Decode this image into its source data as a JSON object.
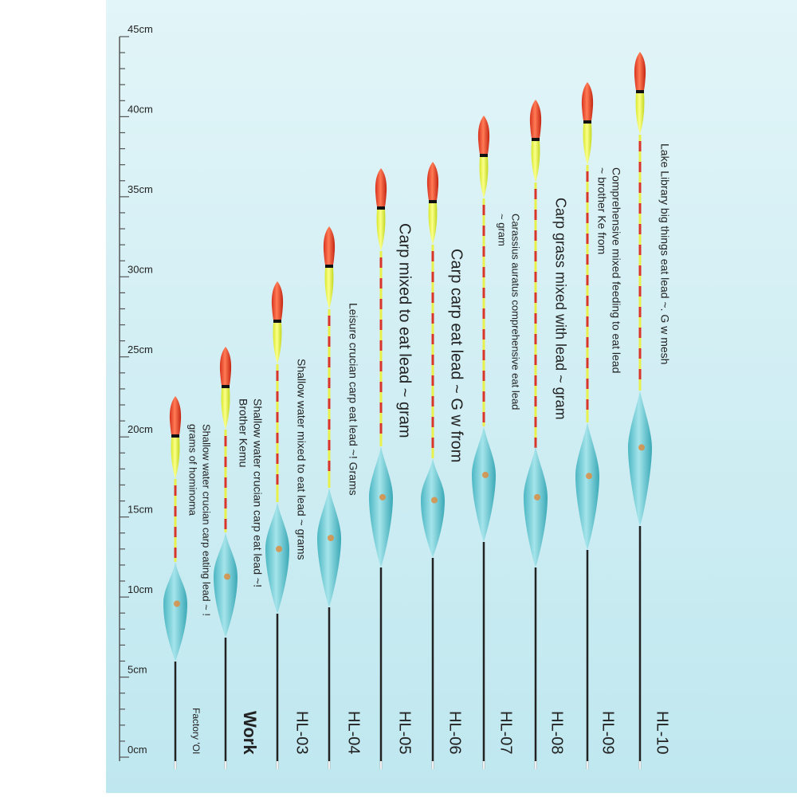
{
  "ruler": {
    "labels": [
      "0cm",
      "5cm",
      "10cm",
      "15cm",
      "20cm",
      "25cm",
      "30cm",
      "35cm",
      "40cm",
      "45cm"
    ]
  },
  "floats": [
    {
      "model": "Factory 'OI",
      "description": [
        "Shallow water crucian carp eating lead ~ !",
        "grams of hominoma"
      ]
    },
    {
      "model": "Work",
      "description": [
        "Shallow water crucian carp eat lead ~!",
        "Brother Kemu"
      ]
    },
    {
      "model": "HL-03",
      "description": [
        "Shallow water mixed to eat lead ~ grams"
      ]
    },
    {
      "model": "HL-04",
      "description": [
        "Leisure crucian carp eat lead ~! Grams"
      ]
    },
    {
      "model": "HL-05",
      "description": [
        "Carp mixed to eat lead ~ gram"
      ]
    },
    {
      "model": "HL-06",
      "description": [
        "Carp carp eat lead ~ G w from"
      ]
    },
    {
      "model": "HL-07",
      "description": [
        "Carassius auratus comprehensive eat lead",
        "~ gram"
      ]
    },
    {
      "model": "HL-08",
      "description": [
        "Carp grass mixed with lead ~ gram"
      ]
    },
    {
      "model": "HL-09",
      "description": [
        "Comprehensive mixed feeding to eat lead",
        "~ brother Ke from"
      ]
    },
    {
      "model": "HL-10",
      "description": [
        "Lake Library big things eat lead ~. G w mesh"
      ]
    }
  ]
}
